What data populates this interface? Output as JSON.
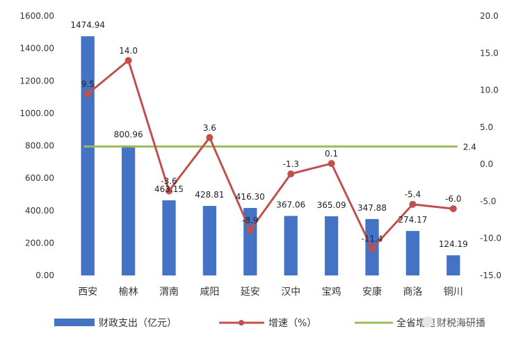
{
  "chart_data": {
    "type": "bar",
    "categories": [
      "西安",
      "榆林",
      "渭南",
      "咸阳",
      "延安",
      "汉中",
      "宝鸡",
      "安康",
      "商洛",
      "铜川"
    ],
    "series": [
      {
        "name": "财政支出（亿元）",
        "type": "bar",
        "axis": "left",
        "color": "#4472c4",
        "values": [
          1474.94,
          800.96,
          463.15,
          428.81,
          416.3,
          367.06,
          365.09,
          347.88,
          274.17,
          124.19
        ],
        "labels": [
          "1474.94",
          "800.96",
          "463.15",
          "428.81",
          "416.30",
          "367.06",
          "365.09",
          "347.88",
          "274.17",
          "124.19"
        ]
      },
      {
        "name": "增速（%）",
        "type": "line",
        "axis": "right",
        "color": "#c0504d",
        "values": [
          9.5,
          14.0,
          -3.6,
          3.6,
          -8.9,
          -1.3,
          0.1,
          -11.4,
          -5.4,
          -6.0
        ],
        "labels": [
          "9.5",
          "14.0",
          "-3.6",
          "3.6",
          "-8.9",
          "-1.3",
          "0.1",
          "-11.4",
          "-5.4",
          "-6.0"
        ]
      },
      {
        "name": "全省增速",
        "type": "line",
        "axis": "right",
        "color": "#9bbb59",
        "values": [
          2.4,
          2.4,
          2.4,
          2.4,
          2.4,
          2.4,
          2.4,
          2.4,
          2.4,
          2.4
        ],
        "end_label": "2.4"
      }
    ],
    "y_left": {
      "range": [
        0,
        1600
      ],
      "ticks": [
        0,
        200,
        400,
        600,
        800,
        1000,
        1200,
        1400,
        1600
      ],
      "tick_labels": [
        "0.00",
        "200.00",
        "400.00",
        "600.00",
        "800.00",
        "1000.00",
        "1200.00",
        "1400.00",
        "1600.00"
      ]
    },
    "y_right": {
      "range": [
        -15,
        20
      ],
      "ticks": [
        -15,
        -10,
        -5,
        0,
        5,
        10,
        15,
        20
      ],
      "tick_labels": [
        "-15.0",
        "-10.0",
        "-5.0",
        "0.0",
        "5.0",
        "10.0",
        "15.0",
        "20.0"
      ]
    },
    "grid": false,
    "legend_position": "bottom",
    "title": "",
    "xlabel": "",
    "ylabel": ""
  },
  "watermark": "财税海研播"
}
